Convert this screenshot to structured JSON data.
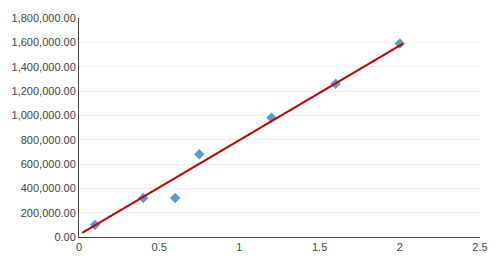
{
  "chart_data": {
    "type": "scatter",
    "series": [
      {
        "type": "scatter",
        "marker": "diamond",
        "color": "#5b9bd5",
        "x": [
          0.1,
          0.4,
          0.6,
          0.75,
          1.2,
          1.6,
          2.0
        ],
        "values": [
          100000,
          320000,
          320000,
          680000,
          980000,
          1260000,
          1590000
        ]
      },
      {
        "type": "line",
        "color": "#c00000",
        "x": [
          0.02,
          2.02
        ],
        "values": [
          33560,
          1589560
        ]
      }
    ],
    "xlim": [
      0,
      2.5
    ],
    "xticks": [
      0,
      0.5,
      1,
      1.5,
      2,
      2.5
    ],
    "ylim": [
      0,
      1800000
    ],
    "yticks": [
      {
        "value": 0,
        "label": "0.00"
      },
      {
        "value": 200000,
        "label": "200,000.00"
      },
      {
        "value": 400000,
        "label": "400,000.00"
      },
      {
        "value": 600000,
        "label": "600,000.00"
      },
      {
        "value": 800000,
        "label": "800,000.00"
      },
      {
        "value": 1000000,
        "label": "1,000,000.00"
      },
      {
        "value": 1200000,
        "label": "1,200,000.00"
      },
      {
        "value": 1400000,
        "label": "1,400,000.00"
      },
      {
        "value": 1600000,
        "label": "1,600,000.00"
      },
      {
        "value": 1800000,
        "label": "1,800,000.00"
      }
    ],
    "grid": "y"
  }
}
